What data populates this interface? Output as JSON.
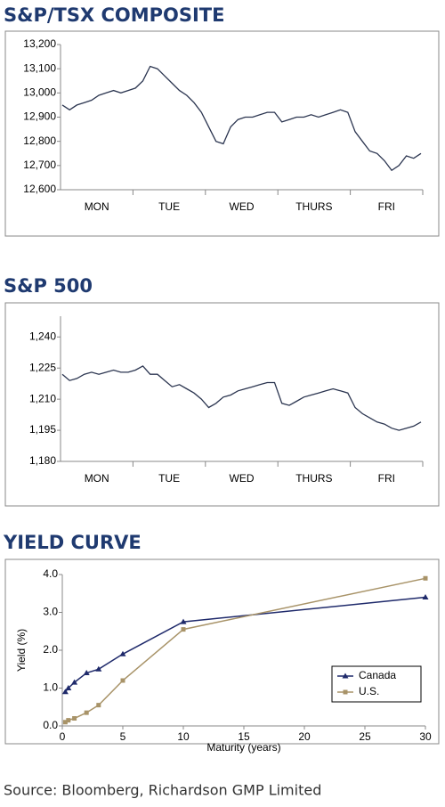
{
  "chart_data": [
    {
      "type": "line",
      "title": "S&P/TSX COMPOSITE",
      "x_labels": [
        "MON",
        "TUE",
        "WED",
        "THURS",
        "FRI"
      ],
      "values": [
        12950,
        12930,
        12950,
        12960,
        12970,
        12990,
        13000,
        13010,
        13000,
        13010,
        13020,
        13050,
        13110,
        13100,
        13070,
        13040,
        13010,
        12990,
        12960,
        12920,
        12860,
        12800,
        12790,
        12860,
        12890,
        12900,
        12900,
        12910,
        12920,
        12920,
        12880,
        12890,
        12900,
        12900,
        12910,
        12900,
        12910,
        12920,
        12930,
        12920,
        12840,
        12800,
        12760,
        12750,
        12720,
        12680,
        12700,
        12740,
        12730,
        12750
      ],
      "color": "#2b3550",
      "ylim": [
        12600,
        13200
      ],
      "yticks": [
        {
          "value": 12600,
          "label": "12,600"
        },
        {
          "value": 12700,
          "label": "12,700"
        },
        {
          "value": 12800,
          "label": "12,800"
        },
        {
          "value": 12900,
          "label": "12,900"
        },
        {
          "value": 13000,
          "label": "13,000"
        },
        {
          "value": 13100,
          "label": "13,100"
        },
        {
          "value": 13200,
          "label": "13,200"
        }
      ]
    },
    {
      "type": "line",
      "title": "S&P 500",
      "x_labels": [
        "MON",
        "TUE",
        "WED",
        "THURS",
        "FRI"
      ],
      "values": [
        1222,
        1219,
        1220,
        1222,
        1223,
        1222,
        1223,
        1224,
        1223,
        1223,
        1224,
        1226,
        1222,
        1222,
        1219,
        1216,
        1217,
        1215,
        1213,
        1210,
        1206,
        1208,
        1211,
        1212,
        1214,
        1215,
        1216,
        1217,
        1218,
        1218,
        1208,
        1207,
        1209,
        1211,
        1212,
        1213,
        1214,
        1215,
        1214,
        1213,
        1206,
        1203,
        1201,
        1199,
        1198,
        1196,
        1195,
        1196,
        1197,
        1199
      ],
      "color": "#2b3550",
      "ylim": [
        1180,
        1250
      ],
      "yticks": [
        {
          "value": 1180,
          "label": "1,180"
        },
        {
          "value": 1195,
          "label": "1,195"
        },
        {
          "value": 1210,
          "label": "1,210"
        },
        {
          "value": 1225,
          "label": "1,225"
        },
        {
          "value": 1240,
          "label": "1,240"
        }
      ]
    },
    {
      "type": "scatter-line",
      "title": "YIELD CURVE",
      "x": [
        0.25,
        0.5,
        1,
        2,
        3,
        5,
        10,
        30
      ],
      "series": [
        {
          "name": "Canada",
          "color": "#1f2a6b",
          "marker": "triangle",
          "values": [
            0.9,
            1.0,
            1.15,
            1.4,
            1.5,
            1.9,
            2.75,
            3.4
          ]
        },
        {
          "name": "U.S.",
          "color": "#a89368",
          "marker": "square",
          "values": [
            0.1,
            0.15,
            0.2,
            0.35,
            0.55,
            1.2,
            2.55,
            3.9
          ]
        }
      ],
      "x_label": "Maturity (years)",
      "y_label": "Yield (%)",
      "xlim": [
        0,
        30
      ],
      "xticks": [
        0,
        5,
        10,
        15,
        20,
        25,
        30
      ],
      "ylim": [
        0,
        4
      ],
      "yticks": [
        {
          "value": 0,
          "label": "0.0"
        },
        {
          "value": 1,
          "label": "1.0"
        },
        {
          "value": 2,
          "label": "2.0"
        },
        {
          "value": 3,
          "label": "3.0"
        },
        {
          "value": 4,
          "label": "4.0"
        }
      ],
      "legend": "right"
    }
  ],
  "source": "Source: Bloomberg, Richardson GMP Limited"
}
